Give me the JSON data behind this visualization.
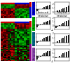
{
  "top_heatmap": {
    "rows": 15,
    "cols": 16,
    "red_rows": 5,
    "blue_rows": 10,
    "col_header_colors": [
      "#cc0000",
      "#cc0000",
      "#cc0000",
      "#cc0000",
      "#cc0000",
      "#cc0000",
      "#cc0000",
      "#cc0000",
      "#0000cc",
      "#0000cc",
      "#0000cc",
      "#0000cc",
      "#0000cc",
      "#0000cc",
      "#0000cc",
      "#0000cc"
    ]
  },
  "bottom_heatmap": {
    "rows": 38,
    "cols": 16,
    "red_rows": 6,
    "green_rows": 16,
    "purple_rows": 16,
    "col_header_colors": [
      "#cc0000",
      "#cc0000",
      "#cc0000",
      "#cc0000",
      "#cc0000",
      "#cc0000",
      "#cc0000",
      "#cc0000",
      "#0000cc",
      "#0000cc",
      "#0000cc",
      "#0000cc",
      "#0000cc",
      "#0000cc",
      "#0000cc",
      "#0000cc"
    ]
  },
  "bar_charts": [
    {
      "title": "",
      "bar_color": "#222222",
      "strip_color": "#0000cc",
      "values": [
        -0.6,
        -0.4,
        -0.1,
        0.2,
        0.5,
        0.7,
        0.9,
        1.1
      ],
      "ylim": [
        -1.5,
        2.0
      ],
      "yticks": [
        -1,
        0,
        1,
        2
      ]
    },
    {
      "title": "",
      "bar_color": "#222222",
      "strip_color": "#0000cc",
      "values": [
        0.1,
        0.3,
        0.5,
        0.7,
        0.9,
        1.1,
        1.3,
        1.5
      ],
      "ylim": [
        -0.5,
        2.5
      ],
      "yticks": [
        0,
        1,
        2
      ]
    },
    {
      "title": "Amino acid\nmetabolism",
      "bar_color": "#222222",
      "strip_color": "#00aa00",
      "values": [
        -0.8,
        -0.5,
        -0.1,
        0.3,
        0.6,
        0.9,
        1.1,
        1.3
      ],
      "ylim": [
        -1.5,
        2.0
      ],
      "yticks": [
        -1,
        0,
        1,
        2
      ]
    },
    {
      "title": "Fatty acid\nmetabolism",
      "bar_color": "#222222",
      "strip_color": "#00aa00",
      "values": [
        -0.5,
        -0.2,
        0.1,
        0.4,
        0.7,
        1.0,
        1.2,
        1.4
      ],
      "ylim": [
        -1.0,
        2.0
      ],
      "yticks": [
        -1,
        0,
        1,
        2
      ]
    },
    {
      "title": "",
      "bar_color": "#222222",
      "strip_color": "#006688",
      "values": [
        -0.4,
        -0.1,
        0.2,
        0.5,
        0.8,
        1.0,
        1.2,
        1.4
      ],
      "ylim": [
        -1.0,
        2.0
      ],
      "yticks": [
        -1,
        0,
        1,
        2
      ]
    },
    {
      "title": "",
      "bar_color": "#222222",
      "strip_color": "#006688",
      "values": [
        0.0,
        0.3,
        0.6,
        0.9,
        1.1,
        1.3,
        1.5,
        1.6
      ],
      "ylim": [
        -0.5,
        2.0
      ],
      "yticks": [
        0,
        1,
        2
      ]
    },
    {
      "title": "",
      "bar_color": "#222222",
      "strip_color": "#8844aa",
      "values": [
        -1.0,
        -0.6,
        -0.2,
        0.3,
        0.7,
        1.0,
        1.3,
        1.5
      ],
      "ylim": [
        -1.5,
        2.0
      ],
      "yticks": [
        -1,
        0,
        1,
        2
      ]
    },
    {
      "title": "",
      "bar_color": "#222222",
      "strip_color": "#8844aa",
      "values": [
        -0.3,
        0.0,
        0.3,
        0.6,
        0.9,
        1.1,
        1.3,
        1.5
      ],
      "ylim": [
        -1.0,
        2.0
      ],
      "yticks": [
        -1,
        0,
        1,
        2
      ]
    }
  ],
  "bg_color": "#ffffff"
}
